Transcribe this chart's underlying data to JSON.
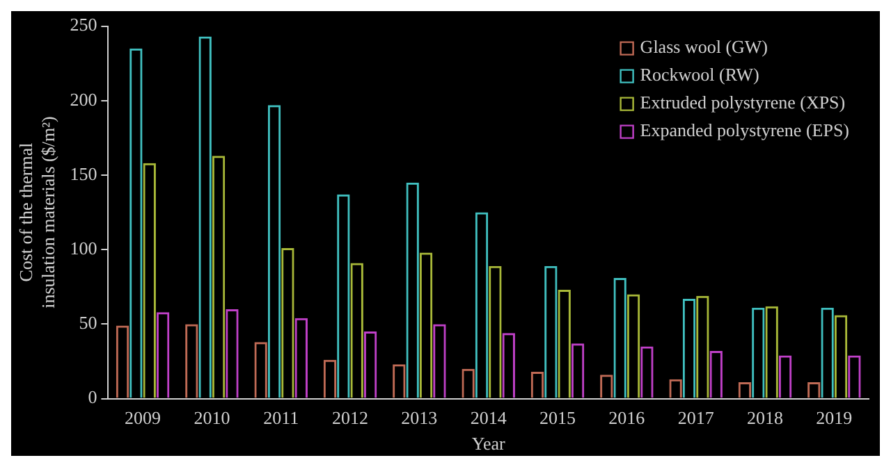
{
  "chart_data": {
    "type": "bar",
    "xlabel": "Year",
    "ylabel": "Cost of the thermal insulation materials ($/m²)",
    "categories": [
      "2009",
      "2010",
      "2011",
      "2012",
      "2013",
      "2014",
      "2015",
      "2016",
      "2017",
      "2018",
      "2019"
    ],
    "series": [
      {
        "name": "Glass wool (GW)",
        "color": "#c06a55",
        "values": [
          49,
          50,
          38,
          26,
          23,
          20,
          18,
          16,
          13,
          11,
          11
        ]
      },
      {
        "name": "Rockwool (RW)",
        "color": "#40c0c0",
        "values": [
          235,
          243,
          197,
          137,
          145,
          125,
          89,
          81,
          67,
          61,
          61
        ]
      },
      {
        "name": "Extruded polystyrene (XPS)",
        "color": "#a8b838",
        "values": [
          158,
          163,
          101,
          91,
          98,
          89,
          73,
          70,
          69,
          62,
          56
        ]
      },
      {
        "name": "Expanded polystyrene (EPS)",
        "color": "#c040c8",
        "values": [
          58,
          60,
          54,
          45,
          50,
          44,
          37,
          35,
          32,
          29,
          29
        ]
      }
    ],
    "ylim": [
      0,
      250
    ],
    "yticks": [
      0,
      50,
      100,
      150,
      200,
      250
    ],
    "grid": false,
    "legend": "top right"
  }
}
